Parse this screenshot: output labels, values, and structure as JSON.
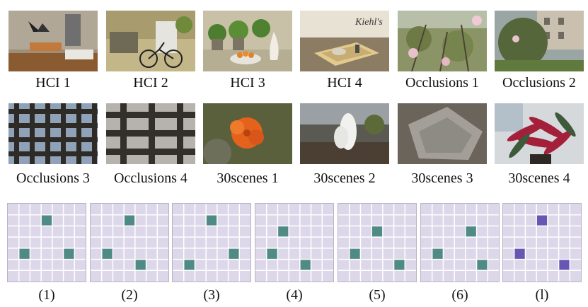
{
  "scenes": [
    {
      "name": "HCI 1",
      "icon": "room-bench-photo"
    },
    {
      "name": "HCI 2",
      "icon": "bicycle-room-photo"
    },
    {
      "name": "HCI 3",
      "icon": "plants-oranges-photo"
    },
    {
      "name": "HCI 4",
      "icon": "kiehls-box-photo"
    },
    {
      "name": "Occlusions 1",
      "icon": "magnolia-photo"
    },
    {
      "name": "Occlusions 2",
      "icon": "building-tree-photo"
    },
    {
      "name": "Occlusions 3",
      "icon": "lattice-fence-photo"
    },
    {
      "name": "Occlusions 4",
      "icon": "fence-photo"
    },
    {
      "name": "30scenes 1",
      "icon": "orange-flower-photo"
    },
    {
      "name": "30scenes 2",
      "icon": "white-flower-photo"
    },
    {
      "name": "30scenes 3",
      "icon": "rock-photo"
    },
    {
      "name": "30scenes 4",
      "icon": "red-plant-photo"
    }
  ],
  "patterns": [
    {
      "label": "(1)",
      "color": "#4f8a84",
      "cells": [
        [
          1,
          3
        ],
        [
          4,
          1
        ],
        [
          4,
          5
        ]
      ]
    },
    {
      "label": "(2)",
      "color": "#4f8a84",
      "cells": [
        [
          1,
          3
        ],
        [
          4,
          1
        ],
        [
          5,
          4
        ]
      ]
    },
    {
      "label": "(3)",
      "color": "#4f8a84",
      "cells": [
        [
          1,
          3
        ],
        [
          4,
          5
        ],
        [
          5,
          1
        ]
      ]
    },
    {
      "label": "(4)",
      "color": "#4f8a84",
      "cells": [
        [
          2,
          2
        ],
        [
          4,
          1
        ],
        [
          5,
          4
        ]
      ]
    },
    {
      "label": "(5)",
      "color": "#4f8a84",
      "cells": [
        [
          2,
          3
        ],
        [
          4,
          1
        ],
        [
          5,
          5
        ]
      ]
    },
    {
      "label": "(6)",
      "color": "#4f8a84",
      "cells": [
        [
          2,
          4
        ],
        [
          4,
          1
        ],
        [
          5,
          5
        ]
      ]
    },
    {
      "label": "(l)",
      "color": "#6657b3",
      "cells": [
        [
          1,
          3
        ],
        [
          4,
          1
        ],
        [
          5,
          5
        ]
      ]
    }
  ],
  "grid_size": 7,
  "grid_bg": "#ddd7ea",
  "grid_line": "#ffffff"
}
